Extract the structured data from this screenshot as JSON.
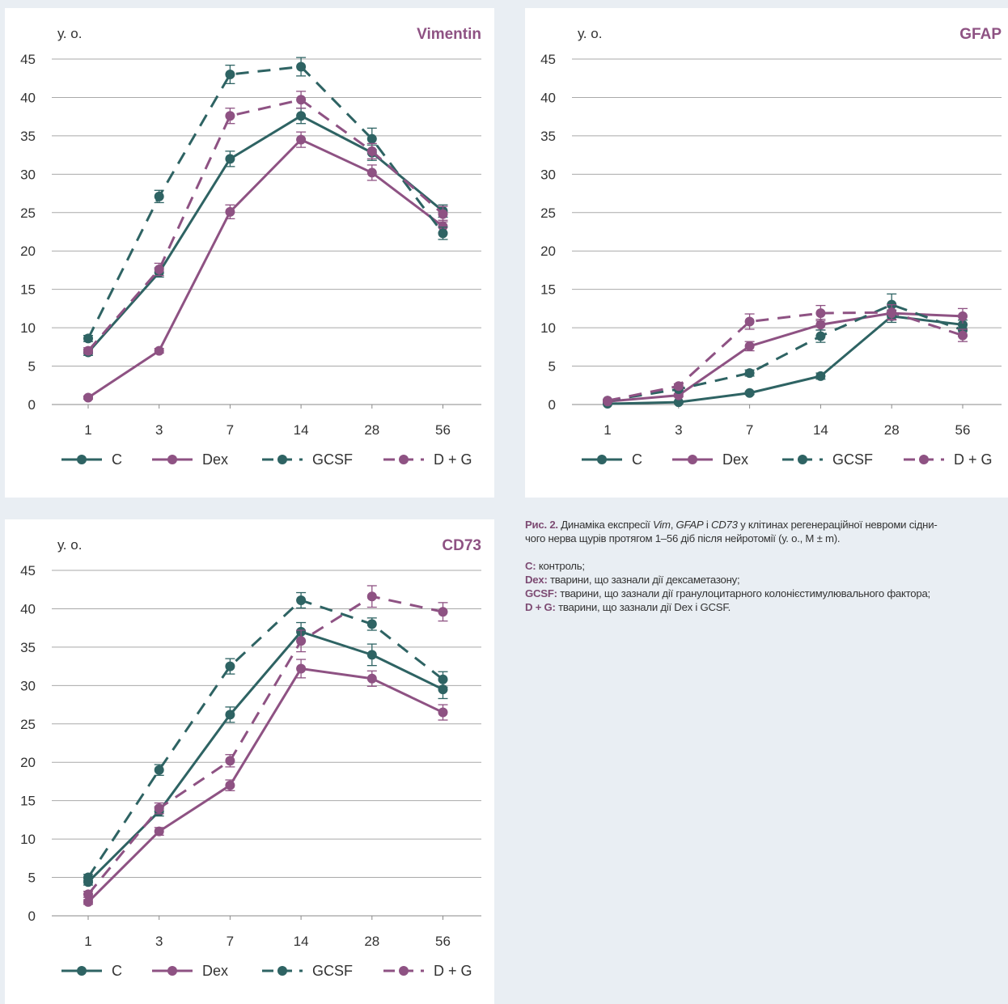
{
  "chart_data": [
    {
      "type": "line",
      "title": "Vimentin",
      "ylabel": "у. о.",
      "xlabel": "",
      "categories": [
        "1",
        "3",
        "7",
        "14",
        "28",
        "56"
      ],
      "ylim": [
        0,
        45
      ],
      "yticks": [
        0,
        5,
        10,
        15,
        20,
        25,
        30,
        35,
        40,
        45
      ],
      "grid": true,
      "legend": "bottom",
      "series": [
        {
          "name": "C",
          "values": [
            6.8,
            17.2,
            32.0,
            37.6,
            32.8,
            25.2
          ],
          "errors": [
            0.4,
            0.6,
            1.0,
            1.0,
            1.0,
            0.8
          ]
        },
        {
          "name": "Dex",
          "values": [
            0.9,
            7.0,
            25.1,
            34.5,
            30.2,
            23.2
          ],
          "errors": [
            0.2,
            0.3,
            0.9,
            1.0,
            1.0,
            0.8
          ]
        },
        {
          "name": "GCSF",
          "values": [
            8.6,
            27.1,
            43.0,
            44.0,
            34.6,
            22.3
          ],
          "errors": [
            0.4,
            0.8,
            1.2,
            1.2,
            1.4,
            0.8
          ]
        },
        {
          "name": "D + G",
          "values": [
            7.0,
            17.6,
            37.6,
            39.7,
            33.0,
            24.8
          ],
          "errors": [
            0.4,
            0.8,
            1.0,
            1.1,
            1.0,
            1.0
          ]
        }
      ]
    },
    {
      "type": "line",
      "title": "GFAP",
      "ylabel": "у. о.",
      "xlabel": "",
      "categories": [
        "1",
        "3",
        "7",
        "14",
        "28",
        "56"
      ],
      "ylim": [
        0,
        45
      ],
      "yticks": [
        0,
        5,
        10,
        15,
        20,
        25,
        30,
        35,
        40,
        45
      ],
      "grid": true,
      "legend": "bottom",
      "series": [
        {
          "name": "C",
          "values": [
            0.1,
            0.3,
            1.5,
            3.7,
            11.5,
            10.4
          ],
          "errors": [
            0.1,
            0.1,
            0.2,
            0.4,
            0.8,
            0.6
          ]
        },
        {
          "name": "Dex",
          "values": [
            0.4,
            1.2,
            7.6,
            10.4,
            11.9,
            11.5
          ],
          "errors": [
            0.1,
            0.2,
            0.6,
            0.7,
            0.8,
            1.0
          ]
        },
        {
          "name": "GCSF",
          "values": [
            0.5,
            2.0,
            4.1,
            8.9,
            13.0,
            9.7
          ],
          "errors": [
            0.1,
            0.2,
            0.4,
            0.8,
            1.4,
            0.8
          ]
        },
        {
          "name": "D + G",
          "values": [
            0.5,
            2.4,
            10.8,
            11.9,
            12.0,
            9.0
          ],
          "errors": [
            0.1,
            0.3,
            1.0,
            1.0,
            1.0,
            0.8
          ]
        }
      ]
    },
    {
      "type": "line",
      "title": "CD73",
      "ylabel": "у. о.",
      "xlabel": "",
      "categories": [
        "1",
        "3",
        "7",
        "14",
        "28",
        "56"
      ],
      "ylim": [
        0,
        45
      ],
      "yticks": [
        0,
        5,
        10,
        15,
        20,
        25,
        30,
        35,
        40,
        45
      ],
      "grid": true,
      "legend": "bottom",
      "series": [
        {
          "name": "C",
          "values": [
            4.4,
            13.6,
            26.2,
            37.0,
            34.0,
            29.5
          ],
          "errors": [
            0.4,
            0.6,
            1.0,
            1.2,
            1.4,
            1.2
          ]
        },
        {
          "name": "Dex",
          "values": [
            1.8,
            11.0,
            17.0,
            32.2,
            30.9,
            26.5
          ],
          "errors": [
            0.3,
            0.5,
            0.7,
            1.2,
            1.0,
            1.0
          ]
        },
        {
          "name": "GCSF",
          "values": [
            5.0,
            19.0,
            32.5,
            41.1,
            38.0,
            30.8
          ],
          "errors": [
            0.4,
            0.7,
            1.0,
            1.0,
            0.8,
            1.0
          ]
        },
        {
          "name": "D + G",
          "values": [
            2.8,
            14.0,
            20.2,
            35.8,
            41.6,
            39.6
          ],
          "errors": [
            0.4,
            0.7,
            0.8,
            1.4,
            1.4,
            1.2
          ]
        }
      ]
    }
  ],
  "series_styles": {
    "C": {
      "color": "#2e6363",
      "dashed": false
    },
    "Dex": {
      "color": "#8e5283",
      "dashed": false
    },
    "GCSF": {
      "color": "#2e6363",
      "dashed": true
    },
    "D + G": {
      "color": "#8e5283",
      "dashed": true
    }
  },
  "caption": {
    "figure_label": "Рис. 2.",
    "text_before_vim": "Динаміка експресії ",
    "vim": "Vim",
    "comma": ", ",
    "gfap": "GFAP",
    "and": " і ",
    "cd73": "CD73",
    "text_after": " у клітинах регенераційної невроми сідни-",
    "text_line2": "чого нерва щурів протягом 1–56 діб після нейротомії (у. о., M ± m).",
    "legend_items": [
      {
        "key": "C:",
        "text": " контроль;"
      },
      {
        "key": "Dex:",
        "text": " тварини, що зазнали дії дексаметазону;"
      },
      {
        "key": "GCSF:",
        "text": " тварини, що зазнали дії гранулоцитарного колонієстимулювального фактора;"
      },
      {
        "key": "D + G:",
        "text": " тварини, що зазнали дії Dex і GCSF."
      }
    ]
  }
}
